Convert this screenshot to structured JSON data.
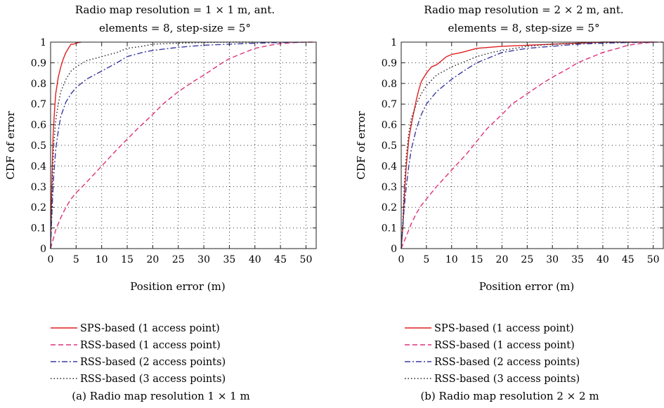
{
  "chart_data": [
    {
      "type": "line",
      "title_line1": "Radio map resolution = 1 × 1 m, ant.",
      "title_line2": "elements = 8, step-size = 5°",
      "xlabel": "Position error (m)",
      "ylabel": "CDF of error",
      "caption": "(a) Radio map resolution 1 × 1 m",
      "xlim": [
        0,
        52
      ],
      "ylim": [
        0,
        1
      ],
      "xticks": [
        "0",
        "5",
        "10",
        "15",
        "20",
        "25",
        "30",
        "35",
        "40",
        "45",
        "50"
      ],
      "yticks": [
        "0",
        "0.1",
        "0.2",
        "0.3",
        "0.4",
        "0.5",
        "0.6",
        "0.7",
        "0.8",
        "0.9",
        "1"
      ],
      "grid": true,
      "legend_position": "below",
      "series": [
        {
          "name": "SPS-based (1 access point)",
          "color": "#e02020",
          "dash": "solid",
          "x": [
            0,
            0.2,
            0.5,
            0.8,
            1.0,
            1.5,
            2.0,
            2.5,
            3.0,
            3.5,
            4.0,
            4.5,
            5.0,
            6.0
          ],
          "y": [
            0,
            0.28,
            0.55,
            0.68,
            0.75,
            0.83,
            0.88,
            0.92,
            0.95,
            0.97,
            0.99,
            0.99,
            0.995,
            1.0
          ]
        },
        {
          "name": "RSS-based (1 access point)",
          "color": "#e0307a",
          "dash": "dashed",
          "x": [
            0,
            1,
            2,
            3,
            4,
            5,
            7,
            10,
            13,
            15,
            17,
            20,
            22,
            25,
            28,
            30,
            33,
            35,
            38,
            40,
            43,
            45,
            48,
            50,
            52
          ],
          "y": [
            0,
            0.09,
            0.15,
            0.2,
            0.24,
            0.27,
            0.32,
            0.4,
            0.48,
            0.53,
            0.58,
            0.65,
            0.7,
            0.76,
            0.81,
            0.84,
            0.89,
            0.92,
            0.95,
            0.97,
            0.985,
            0.993,
            0.998,
            1.0,
            1.0
          ]
        },
        {
          "name": "RSS-based (2 access points)",
          "color": "#3a3aa0",
          "dash": "dashdot",
          "x": [
            0,
            0.3,
            0.6,
            1,
            1.5,
            2,
            3,
            4,
            5,
            7,
            10,
            13,
            15,
            18,
            20,
            25,
            30,
            35,
            40,
            45,
            50
          ],
          "y": [
            0,
            0.2,
            0.35,
            0.48,
            0.57,
            0.64,
            0.71,
            0.75,
            0.78,
            0.82,
            0.86,
            0.9,
            0.93,
            0.95,
            0.96,
            0.975,
            0.985,
            0.99,
            0.995,
            0.998,
            1.0
          ]
        },
        {
          "name": "RSS-based (3 access points)",
          "color": "#222222",
          "dash": "dotted",
          "x": [
            0,
            0.3,
            0.6,
            1,
            1.5,
            2,
            3,
            4,
            5,
            7,
            10,
            13,
            15,
            18,
            20,
            25,
            30,
            35,
            40
          ],
          "y": [
            0,
            0.3,
            0.5,
            0.62,
            0.7,
            0.76,
            0.82,
            0.86,
            0.88,
            0.91,
            0.93,
            0.95,
            0.97,
            0.98,
            0.99,
            0.995,
            0.998,
            1.0,
            1.0
          ]
        }
      ]
    },
    {
      "type": "line",
      "title_line1": "Radio map resolution = 2 × 2 m, ant.",
      "title_line2": "elements = 8, step-size = 5°",
      "xlabel": "Position error (m)",
      "ylabel": "CDF of error",
      "caption": "(b) Radio map resolution 2 × 2 m",
      "xlim": [
        0,
        52
      ],
      "ylim": [
        0,
        1
      ],
      "xticks": [
        "0",
        "5",
        "10",
        "15",
        "20",
        "25",
        "30",
        "35",
        "40",
        "45",
        "50"
      ],
      "yticks": [
        "0",
        "0.1",
        "0.2",
        "0.3",
        "0.4",
        "0.5",
        "0.6",
        "0.7",
        "0.8",
        "0.9",
        "1"
      ],
      "grid": true,
      "legend_position": "below",
      "series": [
        {
          "name": "SPS-based (1 access point)",
          "color": "#e02020",
          "dash": "solid",
          "x": [
            0,
            0.3,
            0.6,
            1.0,
            1.5,
            2.0,
            2.5,
            3.0,
            3.5,
            4.0,
            5.0,
            6.0,
            7.0,
            8.0,
            9.0,
            10,
            12,
            15,
            20,
            25,
            30,
            35,
            40,
            45,
            50
          ],
          "y": [
            0,
            0.1,
            0.25,
            0.4,
            0.53,
            0.6,
            0.66,
            0.72,
            0.77,
            0.81,
            0.85,
            0.88,
            0.89,
            0.91,
            0.93,
            0.94,
            0.95,
            0.97,
            0.98,
            0.985,
            0.99,
            0.995,
            1.0,
            1.0,
            1.0
          ]
        },
        {
          "name": "RSS-based (1 access point)",
          "color": "#e0307a",
          "dash": "dashed",
          "x": [
            0,
            1,
            2,
            3,
            4,
            5,
            7,
            10,
            13,
            15,
            17,
            20,
            22,
            25,
            28,
            30,
            33,
            35,
            38,
            40,
            43,
            45,
            48,
            50,
            52
          ],
          "y": [
            0,
            0.06,
            0.12,
            0.17,
            0.21,
            0.24,
            0.3,
            0.38,
            0.46,
            0.52,
            0.58,
            0.65,
            0.7,
            0.75,
            0.8,
            0.83,
            0.87,
            0.9,
            0.93,
            0.95,
            0.97,
            0.985,
            0.995,
            1.0,
            1.0
          ]
        },
        {
          "name": "RSS-based (2 access points)",
          "color": "#3a3aa0",
          "dash": "dashdot",
          "x": [
            0,
            0.3,
            0.6,
            1,
            1.5,
            2,
            3,
            4,
            5,
            7,
            10,
            13,
            15,
            18,
            20,
            25,
            30,
            35,
            40,
            45,
            50
          ],
          "y": [
            0,
            0.1,
            0.2,
            0.3,
            0.4,
            0.48,
            0.58,
            0.65,
            0.7,
            0.76,
            0.82,
            0.87,
            0.9,
            0.93,
            0.95,
            0.97,
            0.98,
            0.99,
            0.995,
            0.998,
            1.0
          ]
        },
        {
          "name": "RSS-based (3 access points)",
          "color": "#222222",
          "dash": "dotted",
          "x": [
            0,
            0.3,
            0.6,
            1,
            1.5,
            2,
            3,
            4,
            5,
            7,
            10,
            13,
            15,
            18,
            20,
            25,
            30,
            35,
            40,
            45
          ],
          "y": [
            0,
            0.12,
            0.3,
            0.45,
            0.56,
            0.63,
            0.7,
            0.75,
            0.79,
            0.84,
            0.88,
            0.91,
            0.93,
            0.95,
            0.96,
            0.98,
            0.99,
            0.995,
            1.0,
            1.0
          ]
        }
      ]
    }
  ]
}
